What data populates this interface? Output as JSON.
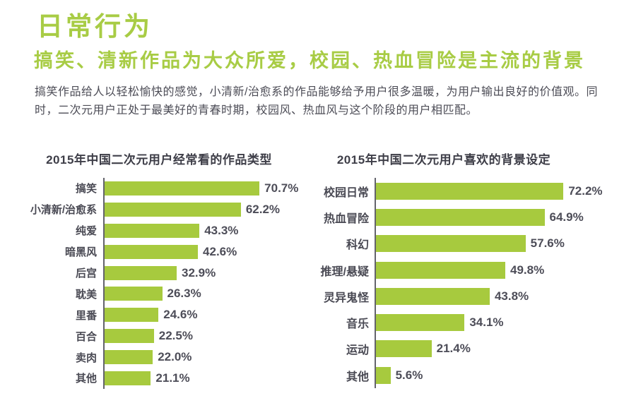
{
  "page": {
    "title": "日常行为",
    "subtitle": "搞笑、清新作品为大众所爱，校园、热血冒险是主流的背景",
    "body": "搞笑作品给人以轻松愉快的感觉，小清新/治愈系的作品能够给予用户很多温暖，为用户输出良好的价值观。同时，二次元用户正处于最美好的青春时期，校园风、热血风与这个阶段的用户相匹配。"
  },
  "colors": {
    "accent_green": "#a8cc45",
    "bar_green": "#a7ca3e",
    "text_dark": "#4c4c56",
    "axis_gray": "#63636b"
  },
  "chart_data": [
    {
      "type": "bar",
      "orientation": "horizontal",
      "title": "2015年中国二次元用户经常看的作品类型",
      "categories": [
        "搞笑",
        "小清新/治愈系",
        "纯爱",
        "暗黑风",
        "后宫",
        "耽美",
        "里番",
        "百合",
        "卖肉",
        "其他"
      ],
      "values": [
        70.7,
        62.2,
        43.3,
        42.6,
        32.9,
        26.3,
        24.6,
        22.5,
        22.0,
        21.1
      ],
      "value_labels": [
        "70.7%",
        "62.2%",
        "43.3%",
        "42.6%",
        "32.9%",
        "26.3%",
        "24.6%",
        "22.5%",
        "22.0%",
        "21.1%"
      ],
      "xlim": [
        0,
        80
      ],
      "grid": false,
      "legend": "none",
      "value_label_position": "right-of-bar"
    },
    {
      "type": "bar",
      "orientation": "horizontal",
      "title": "2015年中国二次元用户喜欢的背景设定",
      "categories": [
        "校园日常",
        "热血冒险",
        "科幻",
        "推理/悬疑",
        "灵异鬼怪",
        "音乐",
        "运动",
        "其他"
      ],
      "values": [
        72.2,
        64.9,
        57.6,
        49.8,
        43.8,
        34.1,
        21.4,
        5.6
      ],
      "value_labels": [
        "72.2%",
        "64.9%",
        "57.6%",
        "49.8%",
        "43.8%",
        "34.1%",
        "21.4%",
        "5.6%"
      ],
      "xlim": [
        0,
        80
      ],
      "grid": false,
      "legend": "none",
      "value_label_position": "right-of-bar"
    }
  ]
}
